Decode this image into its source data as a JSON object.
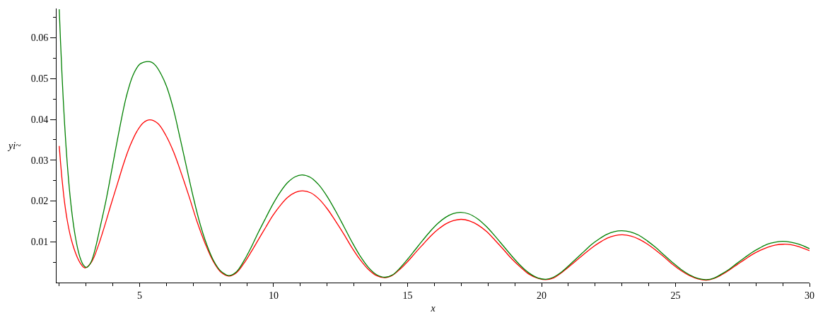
{
  "chart_data": {
    "type": "line",
    "xlabel": "x",
    "ylabel": "yi~",
    "line_style": "solid",
    "xlim": [
      1.9,
      30
    ],
    "ylim": [
      0,
      0.0672
    ],
    "xticks": [
      {
        "value": 2,
        "label": null
      },
      {
        "value": 3,
        "label": null
      },
      {
        "value": 4,
        "label": null
      },
      5,
      {
        "value": 6,
        "label": null
      },
      {
        "value": 7,
        "label": null
      },
      {
        "value": 8,
        "label": null
      },
      {
        "value": 9,
        "label": null
      },
      10,
      {
        "value": 11,
        "label": null
      },
      {
        "value": 12,
        "label": null
      },
      {
        "value": 13,
        "label": null
      },
      {
        "value": 14,
        "label": null
      },
      15,
      {
        "value": 16,
        "label": null
      },
      {
        "value": 17,
        "label": null
      },
      {
        "value": 18,
        "label": null
      },
      {
        "value": 19,
        "label": null
      },
      20,
      {
        "value": 21,
        "label": null
      },
      {
        "value": 22,
        "label": null
      },
      {
        "value": 23,
        "label": null
      },
      {
        "value": 24,
        "label": null
      },
      25,
      {
        "value": 26,
        "label": null
      },
      {
        "value": 27,
        "label": null
      },
      {
        "value": 28,
        "label": null
      },
      {
        "value": 29,
        "label": null
      },
      30
    ],
    "yticks": [
      {
        "value": 0.005,
        "label": null
      },
      0.01,
      {
        "value": 0.015,
        "label": null
      },
      0.02,
      {
        "value": 0.025,
        "label": null
      },
      0.03,
      {
        "value": 0.035,
        "label": null
      },
      0.04,
      {
        "value": 0.045,
        "label": null
      },
      0.05,
      {
        "value": 0.055,
        "label": null
      },
      0.06,
      {
        "value": 0.065,
        "label": null
      }
    ],
    "series": [
      {
        "color": "#ff0000",
        "x": [
          2.0,
          2.05,
          2.1,
          2.15,
          2.2,
          2.3,
          2.4,
          2.5,
          2.6,
          2.7,
          2.8,
          2.9,
          2.97,
          3.21,
          3.45,
          3.69,
          3.93,
          4.18,
          4.42,
          4.66,
          4.9,
          5.14,
          5.38,
          5.68,
          5.97,
          6.27,
          6.56,
          6.86,
          7.15,
          7.45,
          7.74,
          8.04,
          8.33,
          8.61,
          8.88,
          9.16,
          9.43,
          9.71,
          9.98,
          10.26,
          10.53,
          10.81,
          11.08,
          11.39,
          11.69,
          12.0,
          12.31,
          12.62,
          12.92,
          13.23,
          13.54,
          13.84,
          14.15,
          14.44,
          14.72,
          15.01,
          15.29,
          15.58,
          15.86,
          16.15,
          16.43,
          16.72,
          17.0,
          17.32,
          17.63,
          17.95,
          18.26,
          18.58,
          18.89,
          19.21,
          19.52,
          19.84,
          20.15,
          20.44,
          20.72,
          21.01,
          21.3,
          21.59,
          21.87,
          22.16,
          22.45,
          22.73,
          23.02,
          23.33,
          23.65,
          23.96,
          24.27,
          24.59,
          24.9,
          25.21,
          25.52,
          25.84,
          26.15,
          26.44,
          26.72,
          27.01,
          27.3,
          27.59,
          27.87,
          28.16,
          28.45,
          28.73,
          29.02,
          29.3,
          29.6,
          30.0
        ],
        "values": [
          0.0335,
          0.0293,
          0.0256,
          0.0224,
          0.0196,
          0.0152,
          0.0119,
          0.0094,
          0.0074,
          0.0058,
          0.0046,
          0.0038,
          0.0036,
          0.0051,
          0.0089,
          0.0138,
          0.0191,
          0.0244,
          0.0295,
          0.0338,
          0.0371,
          0.0392,
          0.0399,
          0.039,
          0.0362,
          0.032,
          0.0267,
          0.0208,
          0.0148,
          0.0095,
          0.0053,
          0.0025,
          0.0016,
          0.0024,
          0.0046,
          0.0075,
          0.0105,
          0.0136,
          0.0165,
          0.019,
          0.0209,
          0.0221,
          0.0225,
          0.022,
          0.0205,
          0.0181,
          0.0151,
          0.0119,
          0.0086,
          0.0056,
          0.0032,
          0.0017,
          0.0012,
          0.0018,
          0.0033,
          0.0052,
          0.0073,
          0.0094,
          0.0114,
          0.0131,
          0.0144,
          0.0152,
          0.0155,
          0.0151,
          0.0141,
          0.0125,
          0.0104,
          0.0081,
          0.0058,
          0.0038,
          0.0021,
          0.0011,
          0.0007,
          0.0011,
          0.0023,
          0.0038,
          0.0054,
          0.007,
          0.0085,
          0.0098,
          0.0109,
          0.0115,
          0.0117,
          0.0114,
          0.0106,
          0.0094,
          0.0079,
          0.0062,
          0.0044,
          0.0029,
          0.0017,
          0.0009,
          0.0006,
          0.001,
          0.0019,
          0.0031,
          0.0044,
          0.0057,
          0.0069,
          0.0079,
          0.0087,
          0.0092,
          0.0094,
          0.0093,
          0.0088,
          0.0078
        ]
      },
      {
        "color": "#008000",
        "x": [
          2.0,
          2.05,
          2.1,
          2.15,
          2.2,
          2.25,
          2.3,
          2.4,
          2.5,
          2.6,
          2.7,
          2.8,
          2.9,
          3.01,
          3.1,
          3.2,
          3.3,
          3.4,
          3.5,
          3.75,
          4.0,
          4.25,
          4.5,
          4.75,
          5.0,
          5.15,
          5.31,
          5.45,
          5.6,
          5.8,
          6.0,
          6.25,
          6.5,
          6.75,
          7.0,
          7.25,
          7.5,
          7.75,
          8.0,
          8.2,
          8.35,
          8.62,
          8.89,
          9.16,
          9.43,
          9.71,
          9.98,
          10.25,
          10.52,
          10.79,
          11.06,
          11.37,
          11.68,
          11.99,
          12.3,
          12.61,
          12.92,
          13.23,
          13.54,
          13.85,
          14.16,
          14.44,
          14.72,
          15.01,
          15.29,
          15.57,
          15.85,
          16.13,
          16.42,
          16.7,
          16.98,
          17.3,
          17.62,
          17.93,
          18.25,
          18.57,
          18.89,
          19.21,
          19.52,
          19.84,
          20.16,
          20.44,
          20.73,
          21.01,
          21.3,
          21.58,
          21.86,
          22.15,
          22.43,
          22.72,
          23.0,
          23.32,
          23.63,
          23.95,
          24.26,
          24.58,
          24.89,
          25.21,
          25.52,
          25.84,
          26.15,
          26.44,
          26.72,
          27.01,
          27.29,
          27.58,
          27.86,
          28.15,
          28.43,
          28.72,
          29.0,
          29.3,
          29.6,
          30.0
        ],
        "values": [
          0.067,
          0.0588,
          0.0514,
          0.0448,
          0.0389,
          0.0337,
          0.0291,
          0.0215,
          0.0157,
          0.0113,
          0.008,
          0.0057,
          0.0043,
          0.0037,
          0.0041,
          0.0052,
          0.0072,
          0.0098,
          0.0128,
          0.0203,
          0.029,
          0.0377,
          0.0455,
          0.0508,
          0.0535,
          0.054,
          0.0542,
          0.054,
          0.0532,
          0.0511,
          0.0482,
          0.0428,
          0.0357,
          0.0283,
          0.021,
          0.0145,
          0.0094,
          0.0055,
          0.003,
          0.002,
          0.0017,
          0.0027,
          0.0053,
          0.0086,
          0.0123,
          0.0159,
          0.0193,
          0.0222,
          0.0245,
          0.0259,
          0.0264,
          0.0258,
          0.024,
          0.0212,
          0.0177,
          0.0139,
          0.01,
          0.0065,
          0.0037,
          0.0019,
          0.0013,
          0.0019,
          0.0036,
          0.0058,
          0.0081,
          0.0104,
          0.0126,
          0.0145,
          0.016,
          0.0169,
          0.0172,
          0.0168,
          0.0156,
          0.0138,
          0.0115,
          0.009,
          0.0065,
          0.0042,
          0.0024,
          0.0012,
          0.0008,
          0.0013,
          0.0025,
          0.0041,
          0.0059,
          0.0076,
          0.0093,
          0.0107,
          0.0118,
          0.0125,
          0.0127,
          0.0124,
          0.0116,
          0.0102,
          0.0086,
          0.0067,
          0.0049,
          0.0032,
          0.0019,
          0.001,
          0.0007,
          0.0011,
          0.0021,
          0.0033,
          0.0047,
          0.0061,
          0.0074,
          0.0085,
          0.0094,
          0.0099,
          0.0101,
          0.0099,
          0.0094,
          0.0083
        ]
      }
    ]
  }
}
